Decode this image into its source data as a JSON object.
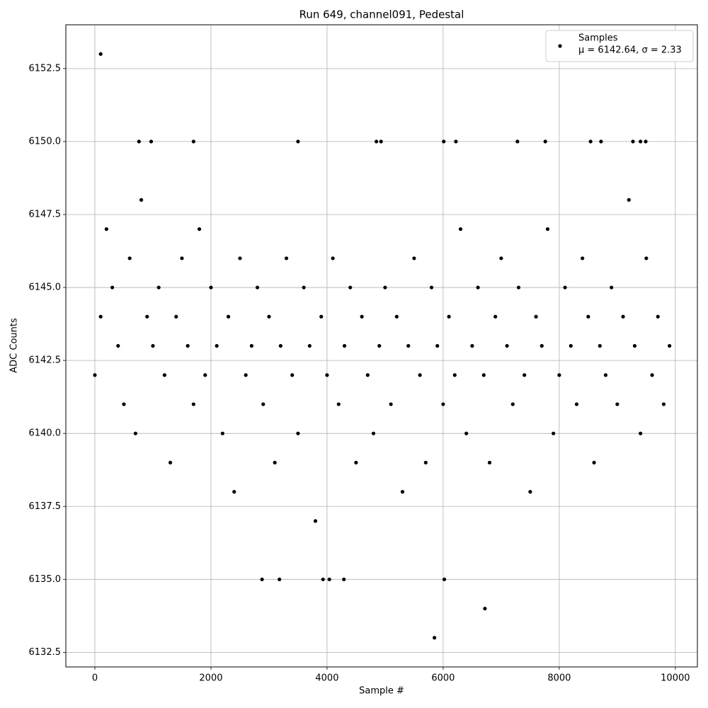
{
  "chart_data": {
    "type": "scatter",
    "title": "Run 649, channel091, Pedestal",
    "x_label": "Sample #",
    "y_label": "ADC Counts",
    "xlim": [
      -500,
      10380
    ],
    "ylim": [
      6132,
      6154
    ],
    "xticks": [
      0,
      2000,
      4000,
      6000,
      8000,
      10000
    ],
    "yticks": [
      6132.5,
      {
        "value": 6135,
        "label": "6135.0"
      },
      6137.5,
      {
        "value": 6140,
        "label": "6140.0"
      },
      6142.5,
      {
        "value": 6145,
        "label": "6145.0"
      },
      6147.5,
      {
        "value": 6150,
        "label": "6150.0"
      },
      6152.5
    ],
    "grid": true,
    "legend": "upper right",
    "legend_note": "μ = 6142.64, σ = 2.33",
    "series": [
      {
        "name": "Samples",
        "color": "#000000",
        "x": [
          0,
          100,
          200,
          300,
          400,
          500,
          600,
          700,
          800,
          900,
          1000,
          1100,
          1200,
          1300,
          1400,
          1500,
          1600,
          1700,
          1800,
          1900,
          2000,
          2100,
          2200,
          2300,
          2400,
          2500,
          2600,
          2700,
          2800,
          2900,
          3000,
          3100,
          3200,
          3300,
          3400,
          3500,
          3600,
          3700,
          3800,
          3900,
          4000,
          4100,
          4200,
          4300,
          4400,
          4500,
          4600,
          4700,
          4800,
          4900,
          5000,
          5100,
          5200,
          5300,
          5400,
          5500,
          5600,
          5700,
          5800,
          5900,
          6000,
          6100,
          6200,
          6300,
          6400,
          6500,
          6600,
          6700,
          6800,
          6900,
          7000,
          7100,
          7200,
          7300,
          7400,
          7500,
          7600,
          7700,
          7800,
          7900,
          8000,
          8100,
          8200,
          8300,
          8400,
          8500,
          8600,
          8700,
          8800,
          8900,
          9000,
          9100,
          9200,
          9300,
          9400,
          9500,
          9600,
          9700,
          9800,
          9900,
          100,
          5850,
          6720,
          6020,
          2880,
          3180,
          3930,
          4040,
          4290,
          760,
          970,
          1700,
          3500,
          4850,
          4930,
          6010,
          6220,
          7280,
          7760,
          8540,
          8720,
          9270,
          9400,
          9490
        ],
        "values": [
          6142,
          6144,
          6147,
          6145,
          6143,
          6141,
          6146,
          6140,
          6148,
          6144,
          6143,
          6145,
          6142,
          6139,
          6144,
          6146,
          6143,
          6141,
          6147,
          6142,
          6145,
          6143,
          6140,
          6144,
          6138,
          6146,
          6142,
          6143,
          6145,
          6141,
          6144,
          6139,
          6143,
          6146,
          6142,
          6140,
          6145,
          6143,
          6137,
          6144,
          6142,
          6146,
          6141,
          6143,
          6145,
          6139,
          6144,
          6142,
          6140,
          6143,
          6145,
          6141,
          6144,
          6138,
          6143,
          6146,
          6142,
          6139,
          6145,
          6143,
          6141,
          6144,
          6142,
          6147,
          6140,
          6143,
          6145,
          6142,
          6139,
          6144,
          6146,
          6143,
          6141,
          6145,
          6142,
          6138,
          6144,
          6143,
          6147,
          6140,
          6142,
          6145,
          6143,
          6141,
          6146,
          6144,
          6139,
          6143,
          6142,
          6145,
          6141,
          6144,
          6148,
          6143,
          6140,
          6146,
          6142,
          6144,
          6141,
          6143,
          6153,
          6133,
          6134,
          6135,
          6135,
          6135,
          6135,
          6135,
          6135,
          6150,
          6150,
          6150,
          6150,
          6150,
          6150,
          6150,
          6150,
          6150,
          6150,
          6150,
          6150,
          6150,
          6150,
          6150
        ]
      }
    ]
  }
}
